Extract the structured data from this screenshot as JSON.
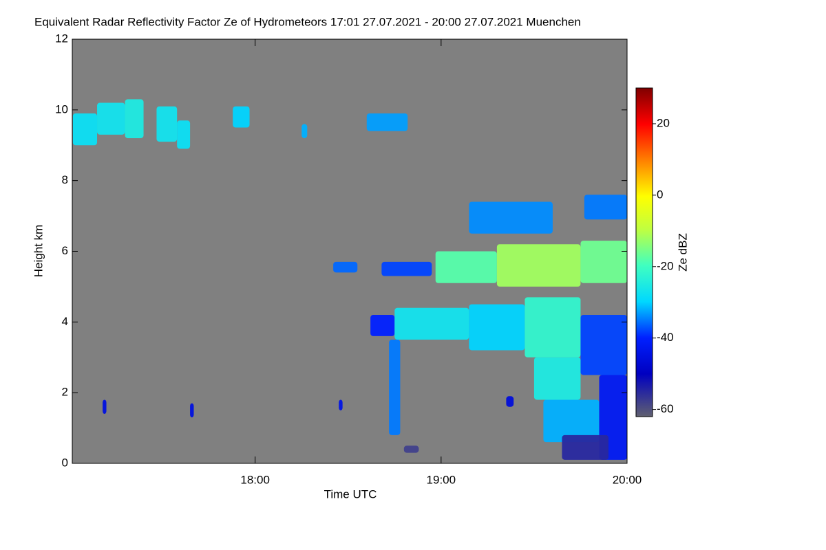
{
  "chart_data": {
    "type": "heatmap",
    "title": "Equivalent Radar Reflectivity Factor Ze of Hydrometeors   17:01 27.07.2021 - 20:00 27.07.2021 Muenchen",
    "x_label": "Time UTC",
    "y_label": "Height km",
    "colorbar_label": "Ze dBZ",
    "background": "#808080",
    "colormap": "jet",
    "xlim": [
      17.0167,
      20.0
    ],
    "xticks": [
      {
        "value": 18,
        "label": "18:00"
      },
      {
        "value": 19,
        "label": "19:00"
      },
      {
        "value": 20,
        "label": "20:00"
      }
    ],
    "ylim": [
      0,
      12
    ],
    "yticks": [
      0,
      2,
      4,
      6,
      8,
      10,
      12
    ],
    "zlim": [
      -62,
      30
    ],
    "zticks": [
      -60,
      -40,
      -20,
      0,
      20
    ],
    "echoes": {
      "t0": [
        17.02,
        17.15,
        17.3,
        17.47,
        17.58,
        17.88,
        18.25,
        18.6,
        19.15,
        19.77,
        18.42,
        18.68,
        18.97,
        19.3,
        19.75,
        18.62,
        18.75,
        19.15,
        19.45,
        19.75,
        18.72,
        19.5,
        19.55,
        19.85,
        19.65,
        18.8,
        17.18,
        17.65,
        18.45,
        19.35
      ],
      "t1": [
        17.15,
        17.3,
        17.4,
        17.58,
        17.65,
        17.97,
        18.28,
        18.82,
        19.6,
        20.0,
        18.55,
        18.95,
        19.3,
        19.75,
        20.0,
        18.75,
        19.15,
        19.45,
        19.75,
        20.0,
        18.78,
        19.75,
        19.85,
        20.0,
        19.9,
        18.88,
        17.2,
        17.67,
        18.47,
        19.39
      ],
      "h0": [
        9.0,
        9.3,
        9.2,
        9.1,
        8.9,
        9.5,
        9.2,
        9.4,
        6.5,
        6.9,
        5.4,
        5.3,
        5.1,
        5.0,
        5.1,
        3.6,
        3.5,
        3.2,
        3.0,
        2.5,
        0.8,
        1.8,
        0.6,
        0.1,
        0.1,
        0.3,
        1.4,
        1.3,
        1.5,
        1.6
      ],
      "h1": [
        9.9,
        10.2,
        10.3,
        10.1,
        9.7,
        10.1,
        9.6,
        9.9,
        7.4,
        7.6,
        5.7,
        5.7,
        6.0,
        6.2,
        6.3,
        4.2,
        4.4,
        4.5,
        4.7,
        4.2,
        3.5,
        3.0,
        1.8,
        2.5,
        0.8,
        0.5,
        1.8,
        1.7,
        1.8,
        1.9
      ],
      "ze": [
        -28,
        -27,
        -25,
        -27,
        -28,
        -30,
        -32,
        -33,
        -34,
        -35,
        -36,
        -38,
        -18,
        -12,
        -16,
        -40,
        -27,
        -30,
        -22,
        -38,
        -35,
        -25,
        -32,
        -42,
        -55,
        -58,
        -45,
        -45,
        -44,
        -46
      ]
    }
  }
}
